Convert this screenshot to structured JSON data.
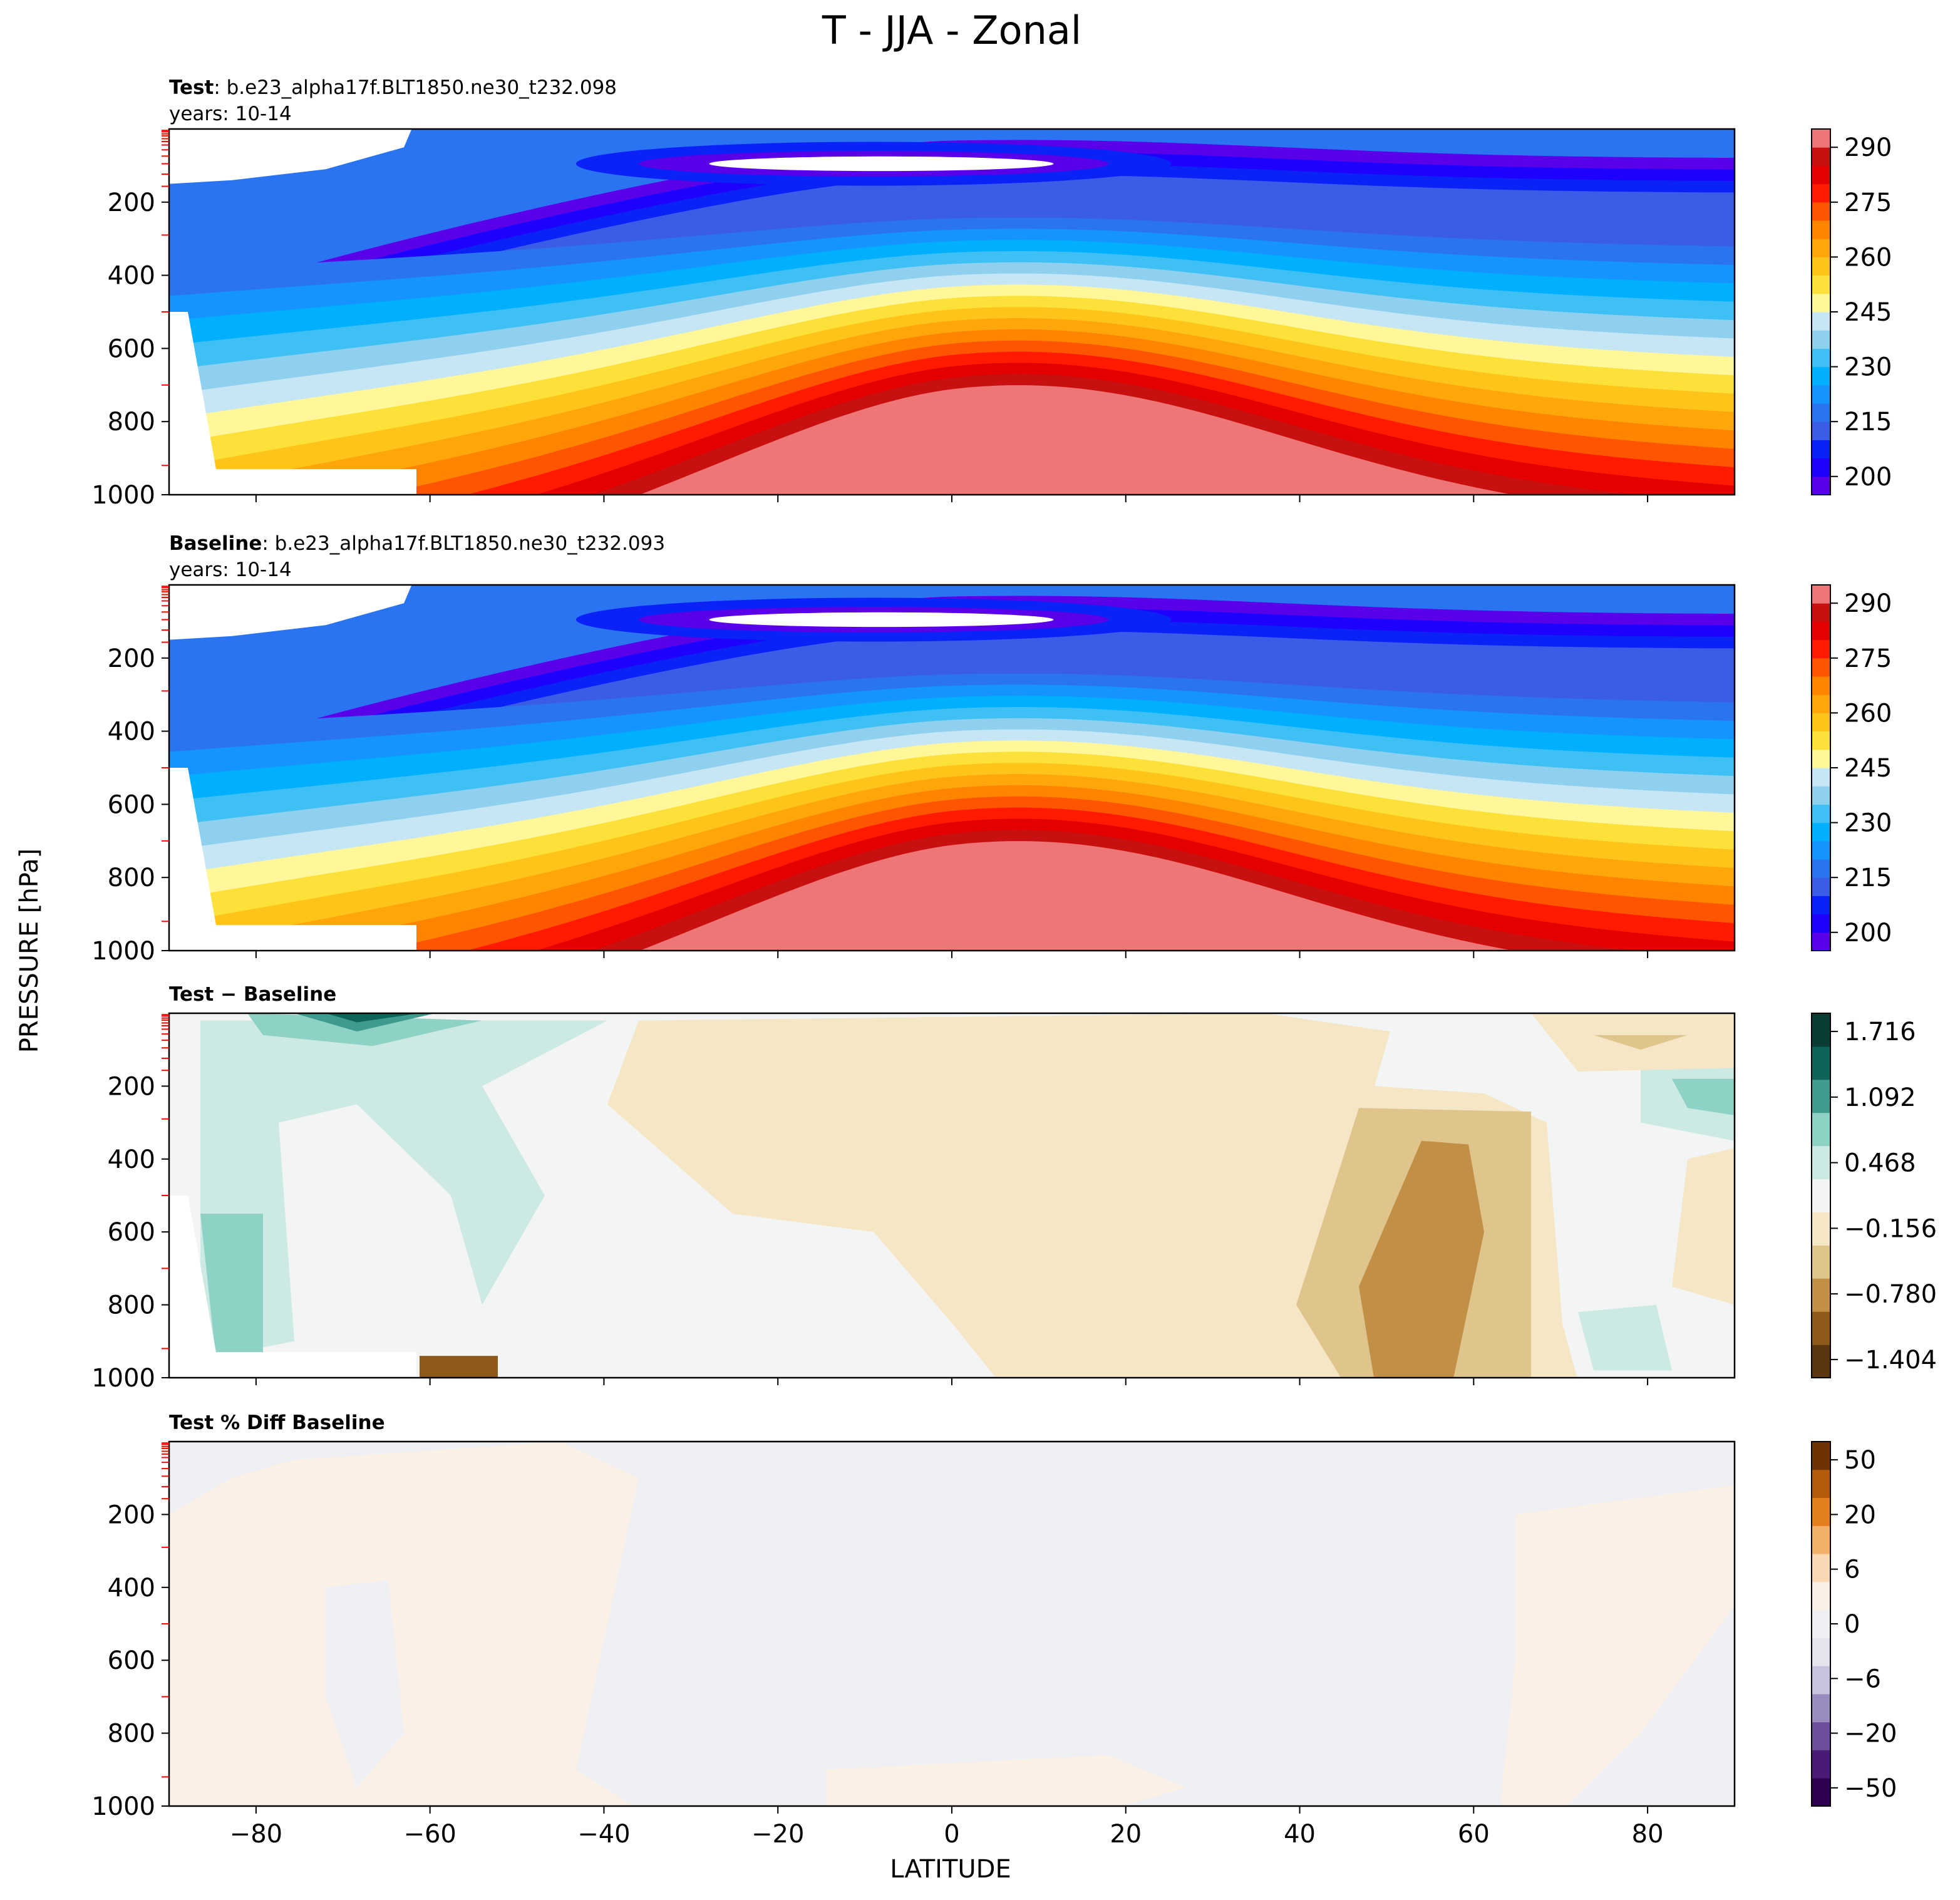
{
  "figure": {
    "title": "T - JJA - Zonal",
    "xlabel": "LATITUDE",
    "ylabel": "PRESSURE [hPa]"
  },
  "chart_data": [
    {
      "type": "heatmap",
      "panel": "test",
      "label_bold": "Test",
      "label_rest": ": b.e23_alpha17f.BLT1850.ne30_t232.098",
      "subtitle": "years: 10-14",
      "x_ticks": [
        -80,
        -60,
        -40,
        -20,
        0,
        20,
        40,
        60,
        80
      ],
      "y_ticks": [
        200,
        400,
        600,
        800,
        1000
      ],
      "xlim": [
        -90,
        90
      ],
      "ylim": [
        0,
        1000
      ],
      "colorbar_ticks": [
        "290",
        "275",
        "260",
        "245",
        "230",
        "215",
        "200"
      ],
      "colorbar_range": [
        200,
        300
      ]
    },
    {
      "type": "heatmap",
      "panel": "baseline",
      "label_bold": "Baseline",
      "label_rest": ": b.e23_alpha17f.BLT1850.ne30_t232.093",
      "subtitle": "years: 10-14",
      "x_ticks": [
        -80,
        -60,
        -40,
        -20,
        0,
        20,
        40,
        60,
        80
      ],
      "y_ticks": [
        200,
        400,
        600,
        800,
        1000
      ],
      "xlim": [
        -90,
        90
      ],
      "ylim": [
        0,
        1000
      ],
      "colorbar_ticks": [
        "290",
        "275",
        "260",
        "245",
        "230",
        "215",
        "200"
      ],
      "colorbar_range": [
        200,
        300
      ]
    },
    {
      "type": "heatmap",
      "panel": "diff",
      "label_bold": "Test − Baseline",
      "x_ticks": [
        -80,
        -60,
        -40,
        -20,
        0,
        20,
        40,
        60,
        80
      ],
      "y_ticks": [
        200,
        400,
        600,
        800,
        1000
      ],
      "xlim": [
        -90,
        90
      ],
      "ylim": [
        0,
        1000
      ],
      "colorbar_ticks": [
        "1.716",
        "1.092",
        "0.468",
        "−0.156",
        "−0.780",
        "−1.404"
      ],
      "colorbar_range": [
        -1.716,
        1.716
      ]
    },
    {
      "type": "heatmap",
      "panel": "pctdiff",
      "label_bold": "Test % Diff Baseline",
      "x_ticks": [
        -80,
        -60,
        -40,
        -20,
        0,
        20,
        40,
        60,
        80
      ],
      "y_ticks": [
        200,
        400,
        600,
        800,
        1000
      ],
      "xlim": [
        -90,
        90
      ],
      "ylim": [
        0,
        1000
      ],
      "colorbar_ticks": [
        "50",
        "20",
        "6",
        "0",
        "−6",
        "−20",
        "−50"
      ],
      "colorbar_range": [
        -100,
        100
      ]
    }
  ],
  "colors": {
    "temp": [
      "#5a00e8",
      "#1e00ff",
      "#0a22f5",
      "#3b5ce6",
      "#2a74f2",
      "#1593ff",
      "#00b0ff",
      "#3fc0f5",
      "#8fd0ef",
      "#c7e6f5",
      "#fff799",
      "#fce13a",
      "#ffc41a",
      "#ffa60a",
      "#ff8400",
      "#ff5400",
      "#ff1a00",
      "#e50000",
      "#c81010",
      "#ef7676"
    ],
    "diff": [
      "#5c3611",
      "#8e5a1a",
      "#c28f46",
      "#dfc58c",
      "#f5e7c6",
      "#f3f4f4",
      "#cceae3",
      "#8dd2c4",
      "#3f9b8e",
      "#0f6458",
      "#0a3d35"
    ],
    "pct": [
      "#300050",
      "#4a1a78",
      "#6d4e9c",
      "#9a8cbf",
      "#c6c3de",
      "#e4e4ef",
      "#eff0f3",
      "#faf0e5",
      "#f8d9b4",
      "#f2b06b",
      "#e37f1f",
      "#b55a0a",
      "#6e3203"
    ],
    "tick_red": "#ff0000"
  }
}
